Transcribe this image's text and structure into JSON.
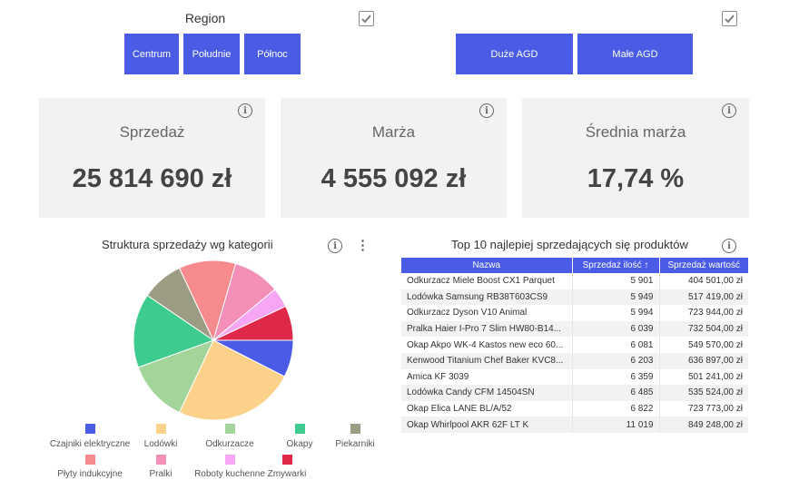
{
  "region_slicer": {
    "title": "Region",
    "buttons": [
      "Centrum",
      "Południe",
      "Północ"
    ]
  },
  "category_slicer": {
    "buttons": [
      "Duże AGD",
      "Małe AGD"
    ]
  },
  "kpis": [
    {
      "label": "Sprzedaż",
      "value": "25 814 690 zł"
    },
    {
      "label": "Marża",
      "value": "4 555 092 zł"
    },
    {
      "label": "Średnia marża",
      "value": "17,74 %"
    }
  ],
  "pie": {
    "title": "Struktura sprzedaży wg kategorii",
    "more_icon": "⋮"
  },
  "chart_data": {
    "type": "pie",
    "title": "Struktura sprzedaży wg kategorii",
    "slices": [
      {
        "label": "Czajniki elektryczne",
        "value": 7.5,
        "color": "#4a5be6"
      },
      {
        "label": "Lodówki",
        "value": 24.5,
        "color": "#fcd18a"
      },
      {
        "label": "Odkurzacze",
        "value": 12.5,
        "color": "#a3d49a"
      },
      {
        "label": "Okapy",
        "value": 15.0,
        "color": "#3ecb8e"
      },
      {
        "label": "Piekarniki",
        "value": 8.5,
        "color": "#9c9c84"
      },
      {
        "label": "Płyty indukcyjne",
        "value": 11.5,
        "color": "#f78a8c"
      },
      {
        "label": "Pralki",
        "value": 9.5,
        "color": "#f48fb8"
      },
      {
        "label": "Roboty kuchenne",
        "value": 4.0,
        "color": "#f6a6f2"
      },
      {
        "label": "Zmywarki",
        "value": 7.0,
        "color": "#e0294a"
      }
    ],
    "legend_placement": "bottom"
  },
  "table": {
    "title": "Top 10 najlepiej sprzedających się produktów",
    "headers": [
      "Nazwa",
      "Sprzedaż ilość",
      "Sprzedaż wartość"
    ],
    "sort_indicator": "↑",
    "rows": [
      [
        "Odkurzacz Miele Boost CX1 Parquet",
        "5 901",
        "404 501,00 zł"
      ],
      [
        "Lodówka Samsung RB38T603CS9",
        "5 949",
        "517 419,00 zł"
      ],
      [
        "Odkurzacz Dyson V10 Animal",
        "5 994",
        "723 944,00 zł"
      ],
      [
        "Pralka Haier I-Pro 7 Slim HW80-B14...",
        "6 039",
        "732 504,00 zł"
      ],
      [
        "Okap Akpo WK-4 Kastos new eco 60...",
        "6 081",
        "549 570,00 zł"
      ],
      [
        "Kenwood Titanium Chef Baker KVC8...",
        "6 203",
        "636 897,00 zł"
      ],
      [
        "Amica KF 3039",
        "6 359",
        "501 241,00 zł"
      ],
      [
        "Lodówka Candy CFM 14504SN",
        "6 485",
        "535 524,00 zł"
      ],
      [
        "Okap Elica LANE BL/A/52",
        "6 822",
        "723 773,00 zł"
      ],
      [
        "Okap Whirlpool AKR 62F LT K",
        "11 019",
        "849 248,00 zł"
      ]
    ]
  },
  "icons": {
    "info": "info-icon",
    "checkbox": "checkbox-checked-icon"
  }
}
